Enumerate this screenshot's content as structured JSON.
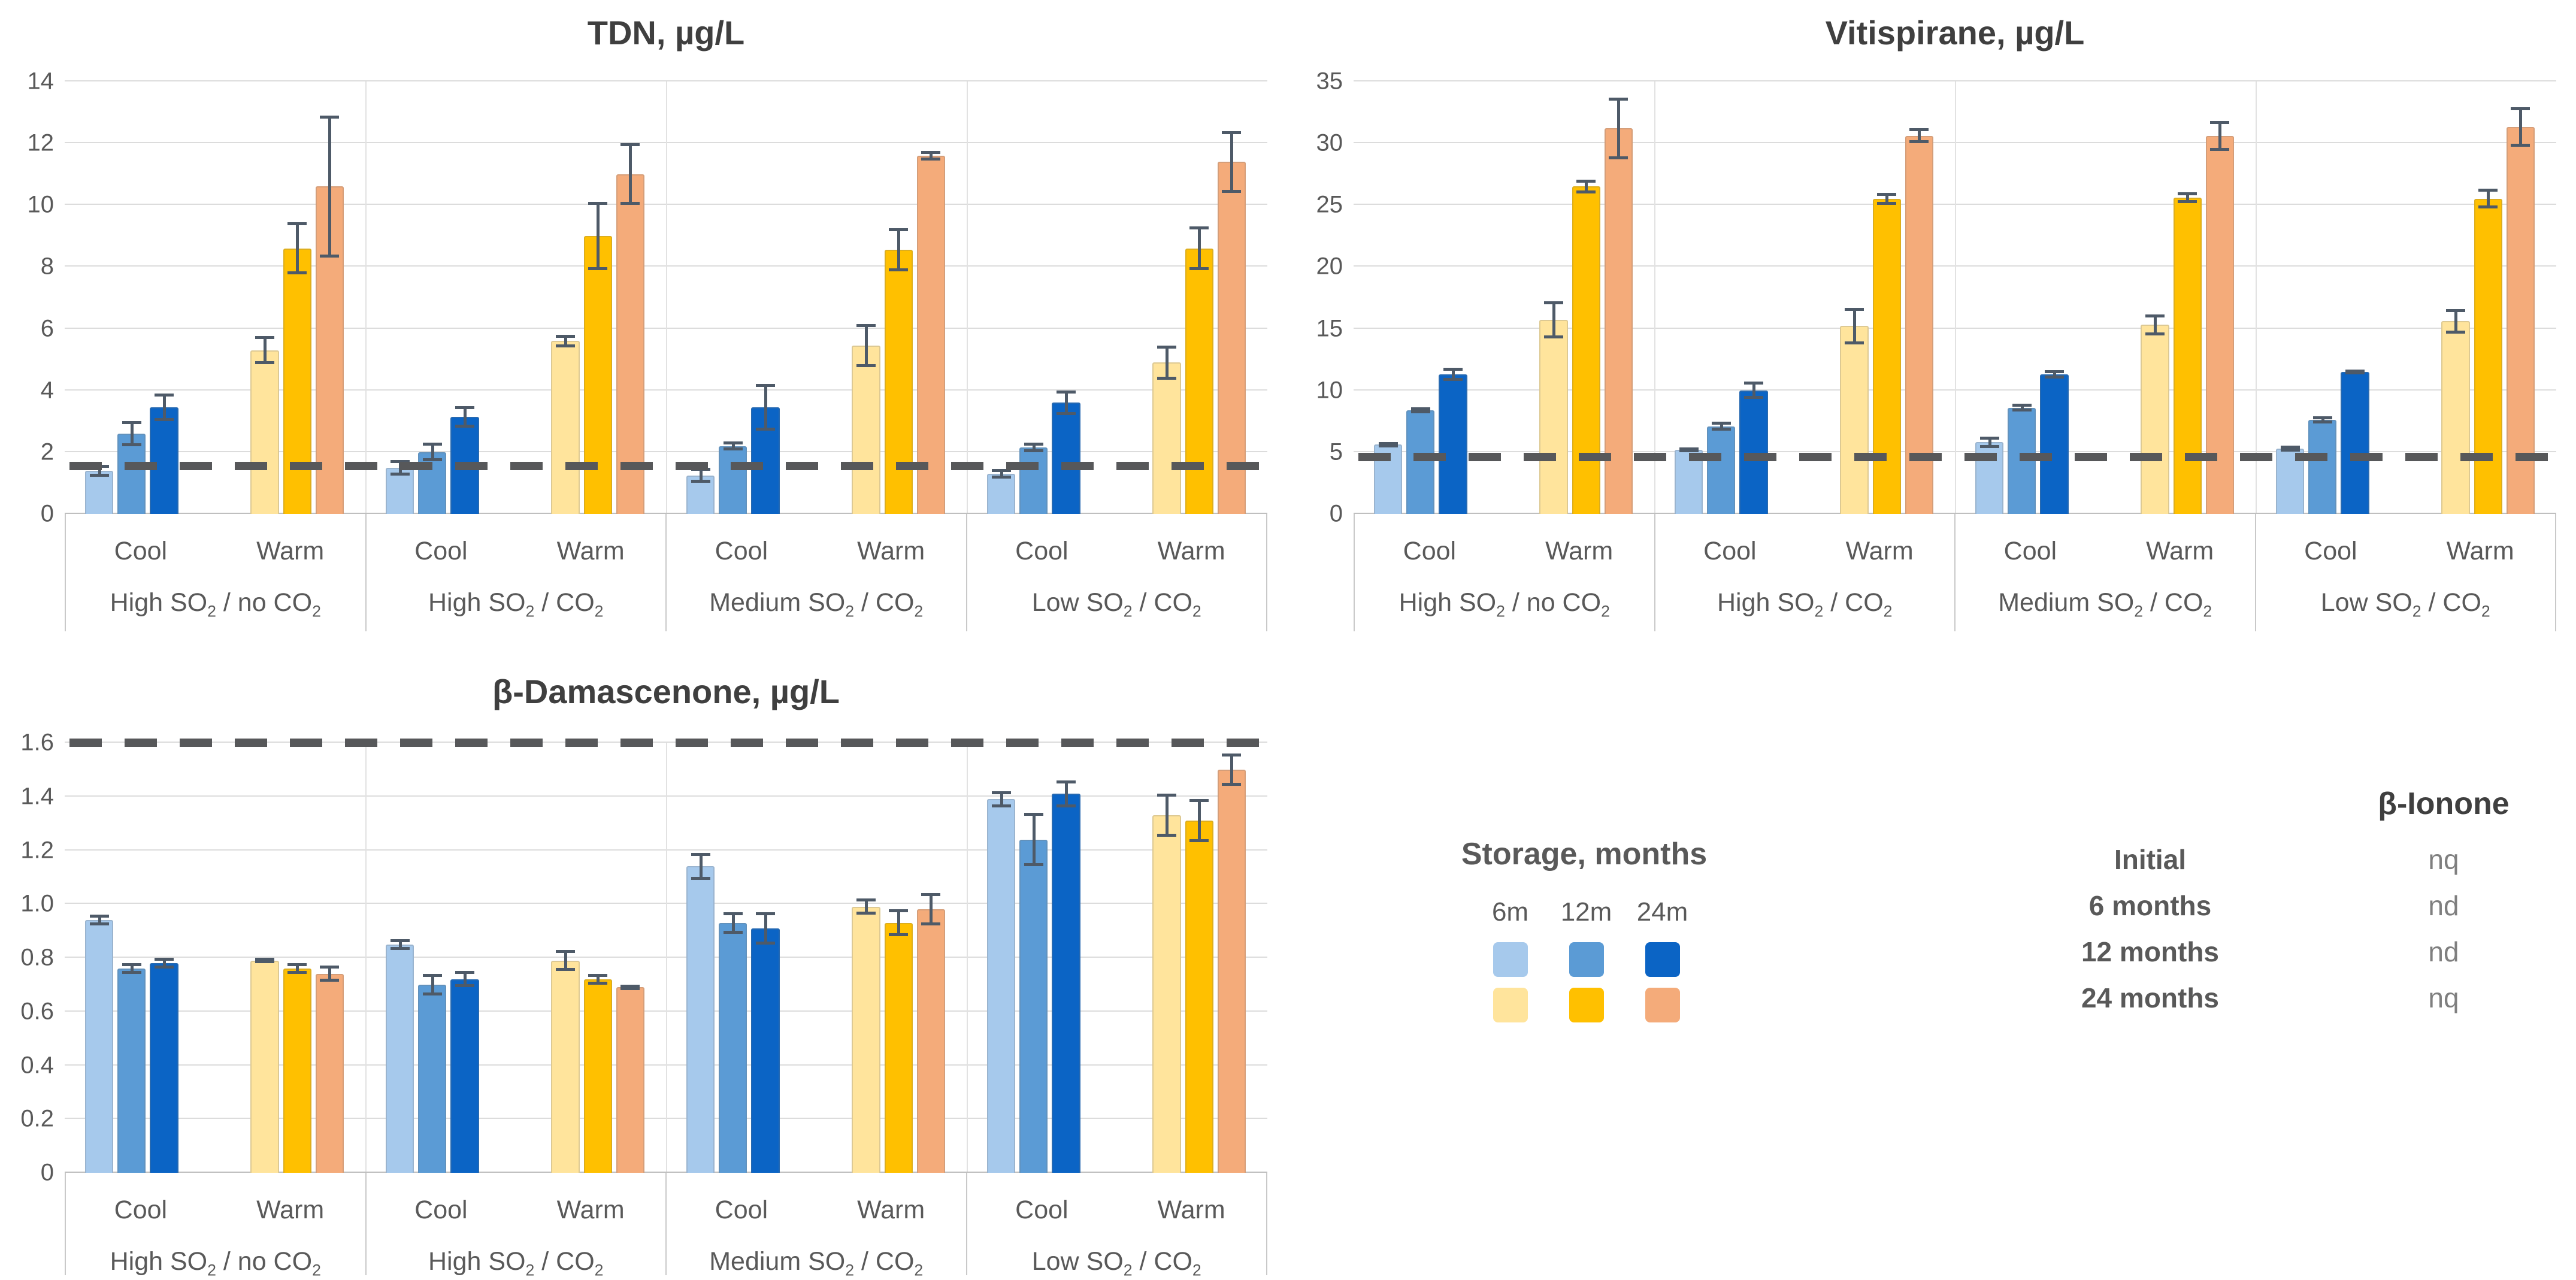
{
  "colors": {
    "cool": [
      "#A6C9EC",
      "#5B9BD5",
      "#0B64C5"
    ],
    "warm": [
      "#FFE49C",
      "#FFC000",
      "#F4AB7A"
    ],
    "dash": "#57585a",
    "grid": "#dcdcdc",
    "whisker": "#4e5a68",
    "text": "#595959",
    "title": "#3f3f3f"
  },
  "subgroup_labels": [
    "Cool",
    "Warm"
  ],
  "chart_data": [
    {
      "type": "bar",
      "title": "TDN, µg/L",
      "ylabel": "",
      "ylim": [
        0,
        14
      ],
      "y_step": 2,
      "tick_decimals": 0,
      "grid": true,
      "initial_line": 1.55,
      "series_labels": [
        "6m",
        "12m",
        "24m"
      ],
      "groups": [
        {
          "label": "High SO₂ / no CO₂",
          "cool": {
            "values": [
              1.4,
              2.6,
              3.45
            ],
            "errors": [
              0.2,
              0.4,
              0.45
            ]
          },
          "warm": {
            "values": [
              5.3,
              8.6,
              10.6
            ],
            "errors": [
              0.45,
              0.85,
              2.3
            ]
          }
        },
        {
          "label": "High SO₂ / CO₂",
          "cool": {
            "values": [
              1.5,
              2.0,
              3.15
            ],
            "errors": [
              0.25,
              0.3,
              0.35
            ]
          },
          "warm": {
            "values": [
              5.6,
              9.0,
              11.0
            ],
            "errors": [
              0.2,
              1.1,
              1.0
            ]
          }
        },
        {
          "label": "Medium SO₂ / CO₂",
          "cool": {
            "values": [
              1.25,
              2.2,
              3.45
            ],
            "errors": [
              0.25,
              0.15,
              0.75
            ]
          },
          "warm": {
            "values": [
              5.45,
              8.55,
              11.6
            ],
            "errors": [
              0.7,
              0.7,
              0.15
            ]
          }
        },
        {
          "label": "Low SO₂ / CO₂",
          "cool": {
            "values": [
              1.3,
              2.15,
              3.6
            ],
            "errors": [
              0.15,
              0.15,
              0.4
            ]
          },
          "warm": {
            "values": [
              4.9,
              8.6,
              11.4
            ],
            "errors": [
              0.55,
              0.7,
              1.0
            ]
          }
        }
      ]
    },
    {
      "type": "bar",
      "title": "Vitispirane, µg/L",
      "ylabel": "",
      "ylim": [
        0,
        35
      ],
      "y_step": 5,
      "tick_decimals": 0,
      "grid": true,
      "initial_line": 4.6,
      "series_labels": [
        "6m",
        "12m",
        "24m"
      ],
      "groups": [
        {
          "label": "High SO₂ / no CO₂",
          "cool": {
            "values": [
              5.6,
              8.4,
              11.3
            ],
            "errors": [
              0.2,
              0.25,
              0.55
            ]
          },
          "warm": {
            "values": [
              15.7,
              26.5,
              31.2
            ],
            "errors": [
              1.5,
              0.55,
              2.5
            ]
          }
        },
        {
          "label": "High SO₂ / CO₂",
          "cool": {
            "values": [
              5.2,
              7.1,
              10.0
            ],
            "errors": [
              0.2,
              0.35,
              0.7
            ]
          },
          "warm": {
            "values": [
              15.2,
              25.5,
              30.6
            ],
            "errors": [
              1.5,
              0.5,
              0.6
            ]
          }
        },
        {
          "label": "Medium SO₂ / CO₂",
          "cool": {
            "values": [
              5.8,
              8.6,
              11.3
            ],
            "errors": [
              0.45,
              0.3,
              0.35
            ]
          },
          "warm": {
            "values": [
              15.3,
              25.6,
              30.6
            ],
            "errors": [
              0.85,
              0.45,
              1.2
            ]
          }
        },
        {
          "label": "Low SO₂ / CO₂",
          "cool": {
            "values": [
              5.3,
              7.6,
              11.5
            ],
            "errors": [
              0.25,
              0.3,
              0.2
            ]
          },
          "warm": {
            "values": [
              15.6,
              25.5,
              31.3
            ],
            "errors": [
              1.0,
              0.8,
              1.6
            ]
          }
        }
      ]
    },
    {
      "type": "bar",
      "title": "β-Damascenone, µg/L",
      "ylabel": "",
      "ylim": [
        0,
        1.6
      ],
      "y_step": 0.2,
      "tick_decimals": 1,
      "grid": true,
      "initial_line": 1.6,
      "series_labels": [
        "6m",
        "12m",
        "24m"
      ],
      "groups": [
        {
          "label": "High SO₂ / no CO₂",
          "cool": {
            "values": [
              0.94,
              0.76,
              0.78
            ],
            "errors": [
              0.02,
              0.02,
              0.02
            ]
          },
          "warm": {
            "values": [
              0.79,
              0.76,
              0.74
            ],
            "errors": [
              0.01,
              0.02,
              0.03
            ]
          }
        },
        {
          "label": "High SO₂ / CO₂",
          "cool": {
            "values": [
              0.85,
              0.7,
              0.72
            ],
            "errors": [
              0.02,
              0.04,
              0.03
            ]
          },
          "warm": {
            "values": [
              0.79,
              0.72,
              0.69
            ],
            "errors": [
              0.04,
              0.02,
              0.01
            ]
          }
        },
        {
          "label": "Medium SO₂ / CO₂",
          "cool": {
            "values": [
              1.14,
              0.93,
              0.91
            ],
            "errors": [
              0.05,
              0.04,
              0.06
            ]
          },
          "warm": {
            "values": [
              0.99,
              0.93,
              0.98
            ],
            "errors": [
              0.03,
              0.05,
              0.06
            ]
          }
        },
        {
          "label": "Low SO₂ / CO₂",
          "cool": {
            "values": [
              1.39,
              1.24,
              1.41
            ],
            "errors": [
              0.03,
              0.1,
              0.05
            ]
          },
          "warm": {
            "values": [
              1.33,
              1.31,
              1.5
            ],
            "errors": [
              0.08,
              0.08,
              0.06
            ]
          }
        }
      ]
    }
  ],
  "legend": {
    "title": "Storage, months",
    "columns": [
      "6m",
      "12m",
      "24m"
    ],
    "rows": [
      {
        "name": "cool",
        "colors": [
          "#A6C9EC",
          "#5B9BD5",
          "#0B64C5"
        ]
      },
      {
        "name": "warm",
        "colors": [
          "#FFE49C",
          "#FFC000",
          "#F4AB7A"
        ]
      }
    ]
  },
  "ionone_table": {
    "title": "β-Ionone",
    "rows": [
      {
        "label": "Initial",
        "value": "nq"
      },
      {
        "label": "6 months",
        "value": "nd"
      },
      {
        "label": "12 months",
        "value": "nd"
      },
      {
        "label": "24 months",
        "value": "nq"
      }
    ]
  }
}
